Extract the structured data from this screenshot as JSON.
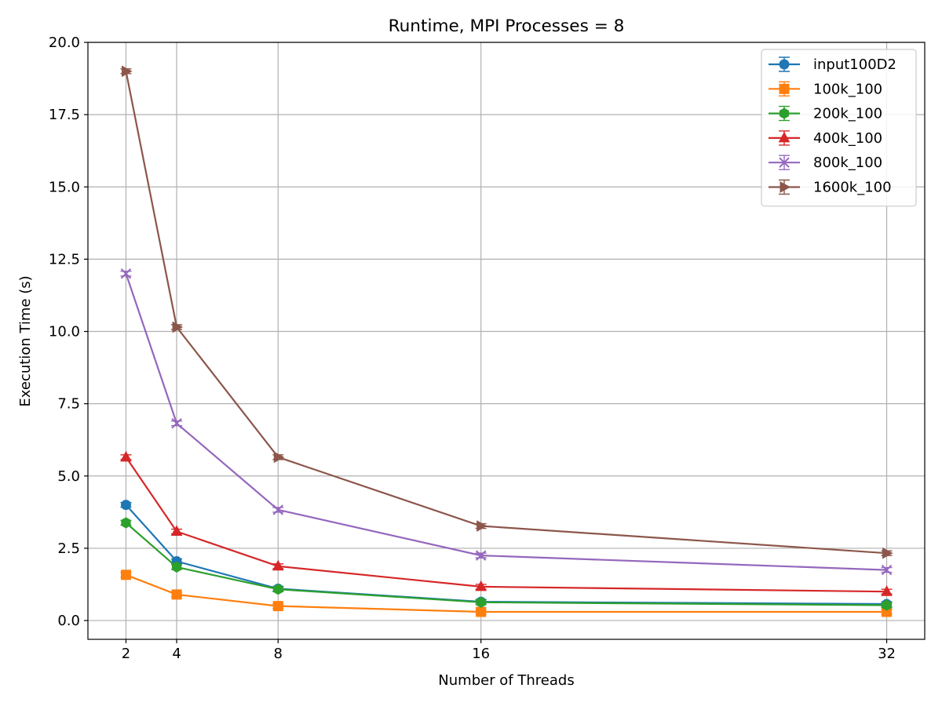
{
  "chart_data": {
    "type": "line",
    "title": "Runtime, MPI Processes = 8",
    "xlabel": "Number of Threads",
    "ylabel": "Execution Time (s)",
    "x": [
      2,
      4,
      8,
      16,
      32
    ],
    "x_ticks": [
      "2",
      "4",
      "8",
      "16",
      "32"
    ],
    "xlim": [
      0.5,
      33.5
    ],
    "ylim": [
      -0.65,
      20.0
    ],
    "y_ticks": [
      "0.0",
      "2.5",
      "5.0",
      "7.5",
      "10.0",
      "12.5",
      "15.0",
      "17.5",
      "20.0"
    ],
    "y_tick_values": [
      0,
      2.5,
      5,
      7.5,
      10,
      12.5,
      15,
      17.5,
      20
    ],
    "grid": true,
    "legend_position": "top-right",
    "error_bars": true,
    "series": [
      {
        "name": "input100D2",
        "color": "#1f77b4",
        "marker": "circle",
        "values": [
          4.0,
          2.05,
          1.1,
          0.65,
          0.57
        ]
      },
      {
        "name": "100k_100",
        "color": "#ff7f0e",
        "marker": "square",
        "values": [
          1.58,
          0.9,
          0.5,
          0.3,
          0.3
        ]
      },
      {
        "name": "200k_100",
        "color": "#2ca02c",
        "marker": "hexagon",
        "values": [
          3.38,
          1.85,
          1.08,
          0.63,
          0.53
        ]
      },
      {
        "name": "400k_100",
        "color": "#d62728",
        "marker": "triangle-up",
        "values": [
          5.65,
          3.08,
          1.88,
          1.17,
          1.0
        ]
      },
      {
        "name": "800k_100",
        "color": "#9467bd",
        "marker": "x",
        "values": [
          12.0,
          6.82,
          3.83,
          2.25,
          1.75
        ]
      },
      {
        "name": "1600k_100",
        "color": "#8c564b",
        "marker": "triangle-right",
        "values": [
          19.0,
          10.15,
          5.65,
          3.27,
          2.33
        ]
      }
    ]
  }
}
